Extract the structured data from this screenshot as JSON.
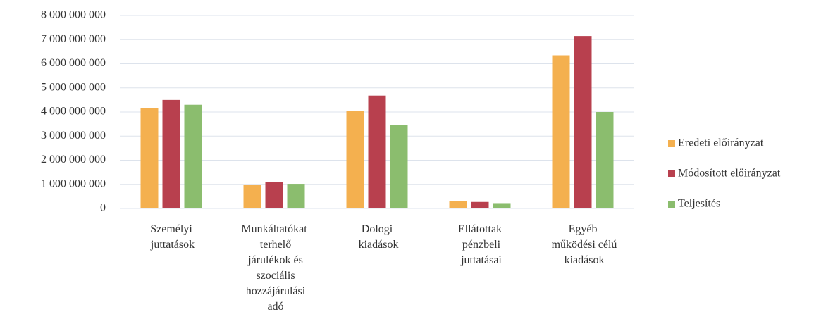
{
  "chart_data": {
    "type": "bar",
    "categories": [
      "Személyi juttatások",
      "Munkáltatókat terhelő járulékok és szociális hozzájárulási adó",
      "Dologi kiadások",
      "Ellátottak pénzbeli juttatásai",
      "Egyéb működési célú kiadások"
    ],
    "series": [
      {
        "name": "Eredeti előirányzat",
        "color": "#f4b04f",
        "values": [
          4150000000,
          970000000,
          4050000000,
          300000000,
          6350000000
        ]
      },
      {
        "name": "Módosított előirányzat",
        "color": "#b8404e",
        "values": [
          4500000000,
          1100000000,
          4680000000,
          270000000,
          7150000000
        ]
      },
      {
        "name": "Teljesítés",
        "color": "#8bbd6e",
        "values": [
          4300000000,
          1020000000,
          3450000000,
          220000000,
          4000000000
        ]
      }
    ],
    "ylim": [
      0,
      8000000000
    ],
    "yticks": [
      0,
      {
        "value": 1000000000,
        "label": "1 000 000 000"
      },
      {
        "value": 2000000000,
        "label": "2 000 000 000"
      },
      {
        "value": 3000000000,
        "label": "3 000 000 000"
      },
      {
        "value": 4000000000,
        "label": "4 000 000 000"
      },
      {
        "value": 5000000000,
        "label": "5 000 000 000"
      },
      {
        "value": 6000000000,
        "label": "6 000 000 000"
      },
      {
        "value": 7000000000,
        "label": "7 000 000 000"
      },
      {
        "value": 8000000000,
        "label": "8 000 000 000"
      }
    ],
    "grid": true,
    "legend": "right"
  }
}
